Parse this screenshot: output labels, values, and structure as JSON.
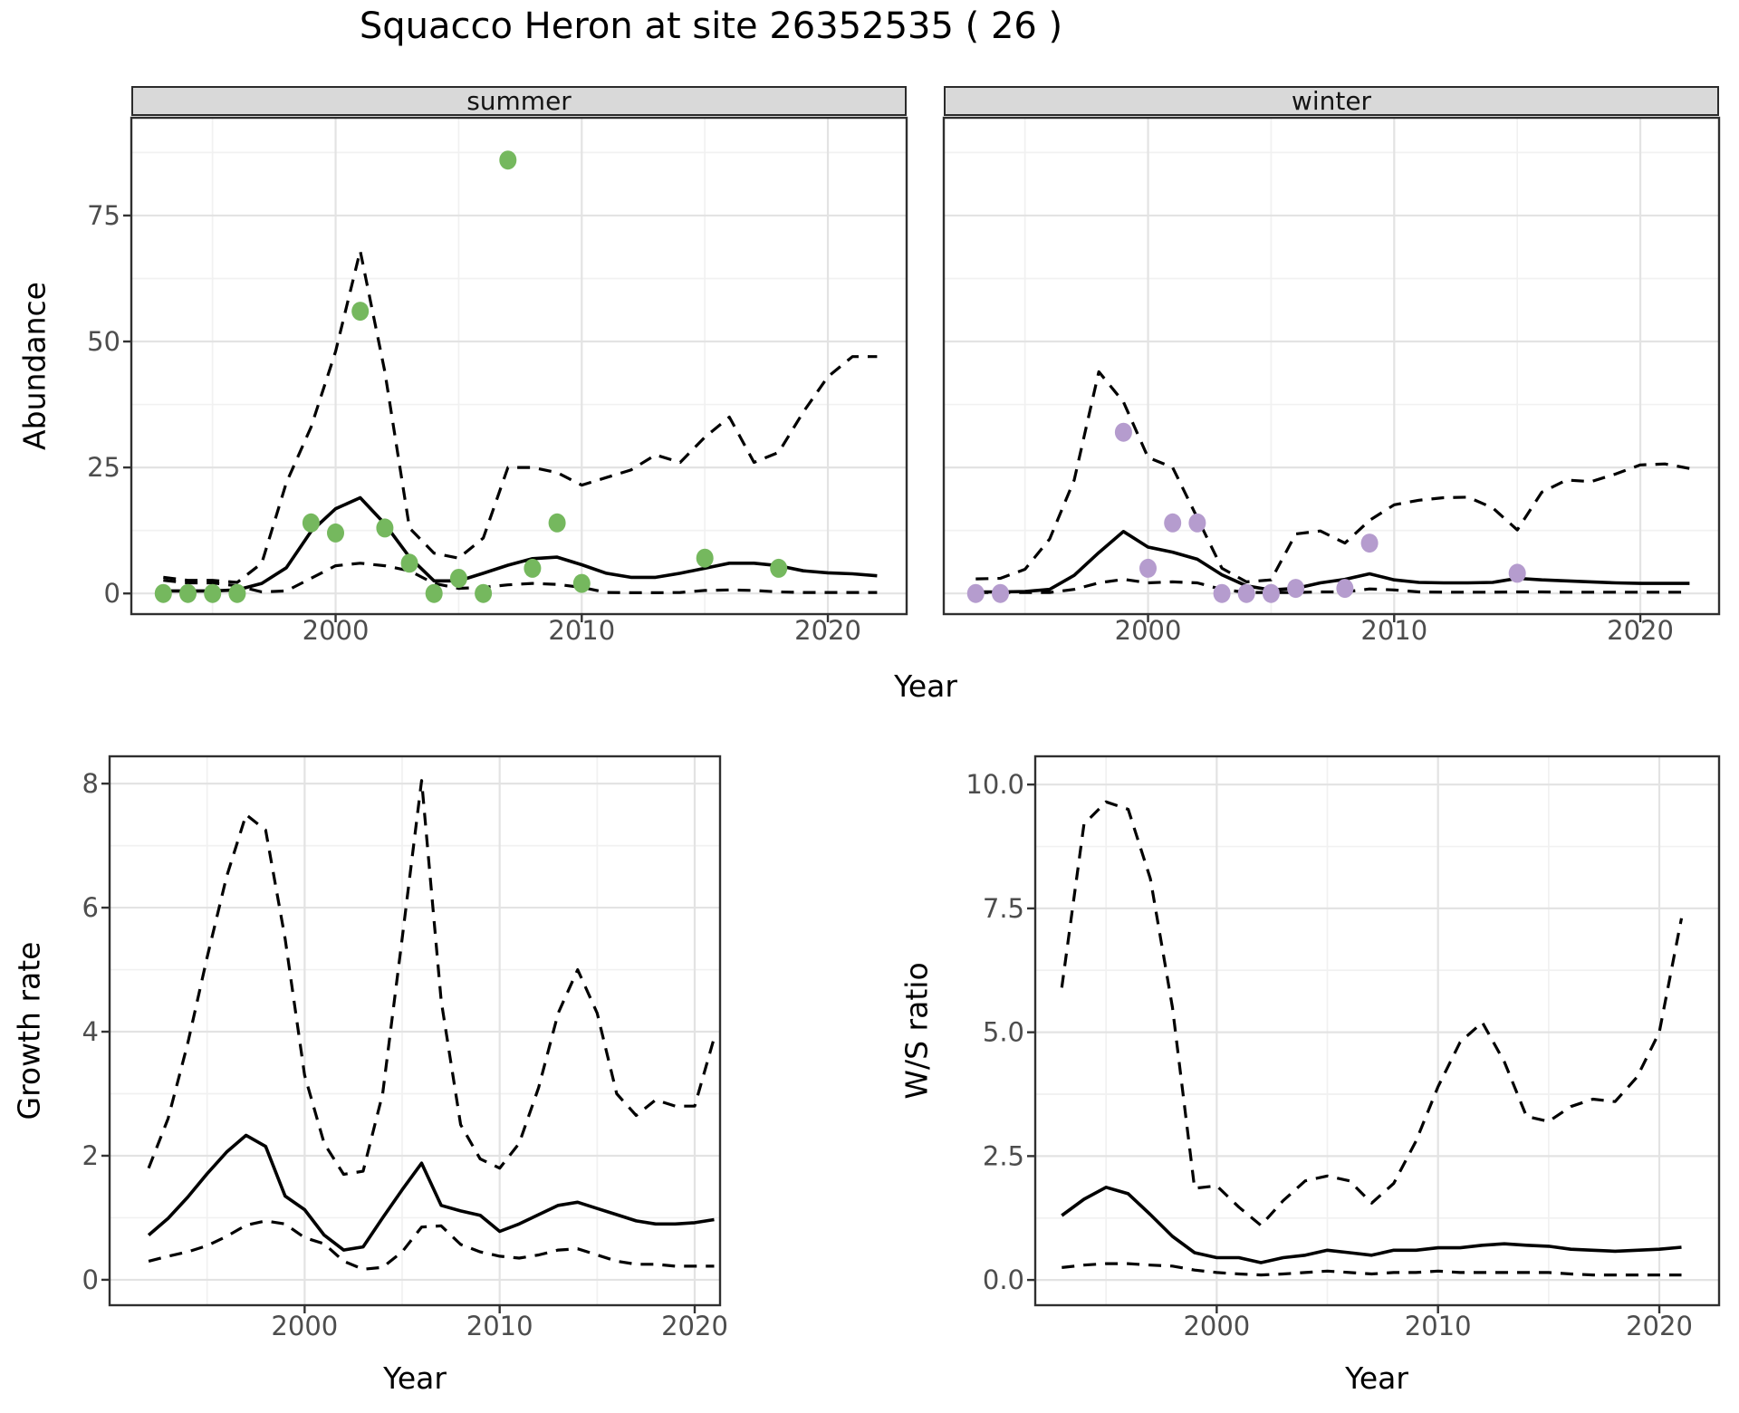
{
  "title": "Squacco Heron at site 26352535 ( 26 )",
  "strips": {
    "summer": "summer",
    "winter": "winter"
  },
  "axis_titles": {
    "abundance": "Abundance",
    "year_top": "Year",
    "growth_rate": "Growth rate",
    "year_bottom_left": "Year",
    "ws_ratio": "W/S ratio",
    "year_bottom_right": "Year"
  },
  "colors": {
    "summer_point": "#75b85e",
    "winter_point": "#b59cce",
    "line": "#000000",
    "strip_bg": "#d9d9d9",
    "panel_border": "#2f2f2f",
    "grid_major": "#e3e3e3",
    "grid_minor": "#f1f1f1",
    "tick_text": "#4d4d4d",
    "tick_mark": "#333333"
  },
  "chart_data": [
    {
      "id": "summer_abundance",
      "type": "line",
      "facet": "summer",
      "xlabel": "Year",
      "ylabel": "Abundance",
      "xlim": [
        1991.7,
        2023.2
      ],
      "ylim": [
        -4.1,
        94.4
      ],
      "xticks": [
        2000,
        2010,
        2020
      ],
      "xtick_labels": [
        "2000",
        "2010",
        "2020"
      ],
      "xticks_minor": [
        1995,
        2005,
        2015
      ],
      "yticks": [
        0,
        25,
        50,
        75
      ],
      "ytick_labels": [
        "0",
        "25",
        "50",
        "75"
      ],
      "yticks_minor": [
        12.5,
        37.5,
        62.5,
        87.5
      ],
      "years": [
        1993,
        1994,
        1995,
        1996,
        1997,
        1998,
        1999,
        2000,
        2001,
        2002,
        2003,
        2004,
        2005,
        2006,
        2007,
        2008,
        2009,
        2010,
        2011,
        2012,
        2013,
        2014,
        2015,
        2016,
        2017,
        2018,
        2019,
        2020,
        2021,
        2022
      ],
      "series": [
        {
          "name": "median",
          "style": "solid",
          "values": [
            0.5,
            0.5,
            0.5,
            0.7,
            2.0,
            5.1,
            12.3,
            16.8,
            19.0,
            13.8,
            7.2,
            2.5,
            2.5,
            4.0,
            5.6,
            6.9,
            7.2,
            5.7,
            4.0,
            3.2,
            3.2,
            4.0,
            5.0,
            6.0,
            6.0,
            5.5,
            4.5,
            4.1,
            3.9,
            3.5
          ]
        },
        {
          "name": "upper_ci",
          "style": "dashed",
          "values": [
            3.2,
            2.6,
            2.6,
            2.2,
            6.0,
            22.0,
            33.0,
            48.0,
            68.0,
            44.0,
            13.0,
            8.0,
            7.0,
            11.0,
            25.0,
            25.0,
            24.0,
            21.5,
            23.0,
            24.5,
            27.5,
            26.0,
            31.0,
            35.0,
            26.0,
            28.0,
            36.0,
            43.0,
            47.0,
            47.0
          ]
        },
        {
          "name": "lower_ci",
          "style": "dashed",
          "values": [
            2.6,
            2.1,
            2.1,
            1.5,
            0.3,
            0.5,
            3.0,
            5.5,
            6.0,
            5.5,
            4.5,
            2.0,
            1.0,
            1.2,
            1.7,
            2.0,
            1.8,
            1.2,
            0.2,
            0.15,
            0.15,
            0.2,
            0.6,
            0.7,
            0.6,
            0.3,
            0.2,
            0.2,
            0.2,
            0.2
          ]
        }
      ],
      "points": {
        "name": "observed_counts",
        "color_key": "summer_point",
        "data": [
          [
            1993,
            0
          ],
          [
            1994,
            0
          ],
          [
            1995,
            0
          ],
          [
            1996,
            0
          ],
          [
            1999,
            14
          ],
          [
            2000,
            12
          ],
          [
            2001,
            56
          ],
          [
            2002,
            13
          ],
          [
            2003,
            6
          ],
          [
            2004,
            0
          ],
          [
            2005,
            3
          ],
          [
            2006,
            0
          ],
          [
            2007,
            86
          ],
          [
            2008,
            5
          ],
          [
            2009,
            14
          ],
          [
            2010,
            2
          ],
          [
            2015,
            7
          ],
          [
            2018,
            5
          ]
        ]
      }
    },
    {
      "id": "winter_abundance",
      "type": "line",
      "facet": "winter",
      "xlabel": "Year",
      "ylabel": "Abundance",
      "xlim": [
        1991.7,
        2023.2
      ],
      "ylim": [
        -4.1,
        94.4
      ],
      "xticks": [
        2000,
        2010,
        2020
      ],
      "xtick_labels": [
        "2000",
        "2010",
        "2020"
      ],
      "xticks_minor": [
        1995,
        2005,
        2015
      ],
      "yticks": [
        0,
        25,
        50,
        75
      ],
      "ytick_labels": [
        "0",
        "25",
        "50",
        "75"
      ],
      "yticks_minor": [
        12.5,
        37.5,
        62.5,
        87.5
      ],
      "years": [
        1993,
        1994,
        1995,
        1996,
        1997,
        1998,
        1999,
        2000,
        2001,
        2002,
        2003,
        2004,
        2005,
        2006,
        2007,
        2008,
        2009,
        2010,
        2011,
        2012,
        2013,
        2014,
        2015,
        2016,
        2017,
        2018,
        2019,
        2020,
        2021,
        2022
      ],
      "series": [
        {
          "name": "median",
          "style": "solid",
          "values": [
            0.3,
            0.3,
            0.4,
            0.8,
            3.6,
            8.1,
            12.3,
            9.2,
            8.2,
            6.8,
            3.7,
            1.5,
            0.7,
            1.0,
            2.1,
            2.8,
            3.9,
            2.7,
            2.2,
            2.1,
            2.1,
            2.2,
            3.0,
            2.7,
            2.5,
            2.3,
            2.1,
            2.0,
            2.0,
            2.0
          ]
        },
        {
          "name": "upper_ci",
          "style": "dashed",
          "values": [
            2.9,
            3.0,
            4.8,
            10.8,
            22.5,
            44.0,
            38.0,
            27.0,
            25.0,
            15.0,
            5.0,
            2.3,
            2.7,
            11.8,
            12.4,
            10.0,
            14.5,
            17.6,
            18.5,
            19.0,
            19.1,
            17.0,
            12.6,
            20.1,
            22.5,
            22.2,
            23.7,
            25.5,
            25.7,
            24.8
          ]
        },
        {
          "name": "lower_ci",
          "style": "dashed",
          "values": [
            0.2,
            0.2,
            0.2,
            0.2,
            0.8,
            2.1,
            2.8,
            2.1,
            2.3,
            2.1,
            0.8,
            0.2,
            0.2,
            0.2,
            0.3,
            0.3,
            0.9,
            0.7,
            0.3,
            0.25,
            0.25,
            0.25,
            0.3,
            0.3,
            0.25,
            0.25,
            0.25,
            0.25,
            0.25,
            0.25
          ]
        }
      ],
      "points": {
        "name": "observed_counts",
        "color_key": "winter_point",
        "data": [
          [
            1993,
            0
          ],
          [
            1994,
            0
          ],
          [
            1999,
            32
          ],
          [
            2000,
            5
          ],
          [
            2001,
            14
          ],
          [
            2002,
            14
          ],
          [
            2003,
            0
          ],
          [
            2004,
            0
          ],
          [
            2005,
            0
          ],
          [
            2006,
            1
          ],
          [
            2008,
            1
          ],
          [
            2009,
            10
          ],
          [
            2015,
            4
          ]
        ]
      }
    },
    {
      "id": "growth_rate",
      "type": "line",
      "facet": null,
      "xlabel": "Year",
      "ylabel": "Growth rate",
      "xlim": [
        1990.0,
        2021.3
      ],
      "ylim": [
        -0.41,
        8.44
      ],
      "xticks": [
        2000,
        2010,
        2020
      ],
      "xtick_labels": [
        "2000",
        "2010",
        "2020"
      ],
      "xticks_minor": [
        1995,
        2005,
        2015
      ],
      "yticks": [
        0,
        2,
        4,
        6,
        8
      ],
      "ytick_labels": [
        "0",
        "2",
        "4",
        "6",
        "8"
      ],
      "yticks_minor": [
        1,
        3,
        5,
        7
      ],
      "years": [
        1992,
        1993,
        1994,
        1995,
        1996,
        1997,
        1998,
        1999,
        2000,
        2001,
        2002,
        2003,
        2004,
        2005,
        2006,
        2007,
        2008,
        2009,
        2010,
        2011,
        2012,
        2013,
        2014,
        2015,
        2016,
        2017,
        2018,
        2019,
        2020,
        2021
      ],
      "series": [
        {
          "name": "median",
          "style": "solid",
          "values": [
            0.72,
            0.99,
            1.33,
            1.71,
            2.06,
            2.33,
            2.15,
            1.35,
            1.13,
            0.72,
            0.48,
            0.53,
            1.0,
            1.45,
            1.88,
            1.2,
            1.11,
            1.04,
            0.78,
            0.9,
            1.05,
            1.2,
            1.25,
            1.15,
            1.05,
            0.95,
            0.9,
            0.9,
            0.92,
            0.97
          ]
        },
        {
          "name": "upper_ci",
          "style": "dashed",
          "values": [
            1.8,
            2.6,
            3.8,
            5.2,
            6.5,
            7.5,
            7.25,
            5.5,
            3.3,
            2.2,
            1.7,
            1.75,
            3.0,
            5.5,
            8.05,
            4.5,
            2.5,
            1.95,
            1.8,
            2.2,
            3.1,
            4.3,
            5.0,
            4.3,
            3.0,
            2.65,
            2.9,
            2.8,
            2.8,
            3.9
          ]
        },
        {
          "name": "lower_ci",
          "style": "dashed",
          "values": [
            0.3,
            0.38,
            0.45,
            0.55,
            0.7,
            0.88,
            0.95,
            0.9,
            0.68,
            0.58,
            0.3,
            0.17,
            0.2,
            0.45,
            0.85,
            0.87,
            0.57,
            0.45,
            0.38,
            0.35,
            0.4,
            0.48,
            0.5,
            0.4,
            0.3,
            0.25,
            0.25,
            0.22,
            0.22,
            0.22
          ]
        }
      ],
      "points": null
    },
    {
      "id": "ws_ratio",
      "type": "line",
      "facet": null,
      "xlabel": "Year",
      "ylabel": "W/S ratio",
      "xlim": [
        1991.8,
        2022.7
      ],
      "ylim": [
        -0.51,
        10.57
      ],
      "xticks": [
        2000,
        2010,
        2020
      ],
      "xtick_labels": [
        "2000",
        "2010",
        "2020"
      ],
      "xticks_minor": [
        1995,
        2005,
        2015
      ],
      "yticks": [
        0,
        2.5,
        5,
        7.5,
        10
      ],
      "ytick_labels": [
        "0.0",
        "2.5",
        "5.0",
        "7.5",
        "10.0"
      ],
      "yticks_minor": [
        1.25,
        3.75,
        6.25,
        8.75
      ],
      "years": [
        1993,
        1994,
        1995,
        1996,
        1997,
        1998,
        1999,
        2000,
        2001,
        2002,
        2003,
        2004,
        2005,
        2006,
        2007,
        2008,
        2009,
        2010,
        2011,
        2012,
        2013,
        2014,
        2015,
        2016,
        2017,
        2018,
        2019,
        2020,
        2021
      ],
      "series": [
        {
          "name": "median",
          "style": "solid",
          "values": [
            1.3,
            1.63,
            1.87,
            1.74,
            1.32,
            0.88,
            0.55,
            0.45,
            0.45,
            0.35,
            0.45,
            0.5,
            0.6,
            0.55,
            0.5,
            0.6,
            0.6,
            0.65,
            0.65,
            0.7,
            0.73,
            0.7,
            0.68,
            0.62,
            0.6,
            0.58,
            0.6,
            0.62,
            0.66
          ]
        },
        {
          "name": "upper_ci",
          "style": "dashed",
          "values": [
            5.9,
            9.2,
            9.65,
            9.5,
            8.1,
            5.5,
            1.85,
            1.9,
            1.47,
            1.1,
            1.6,
            2.0,
            2.1,
            2.0,
            1.55,
            1.95,
            2.8,
            3.9,
            4.8,
            5.2,
            4.4,
            3.3,
            3.2,
            3.5,
            3.65,
            3.6,
            4.1,
            5.0,
            7.3
          ]
        },
        {
          "name": "lower_ci",
          "style": "dashed",
          "values": [
            0.25,
            0.3,
            0.33,
            0.33,
            0.3,
            0.28,
            0.2,
            0.15,
            0.12,
            0.1,
            0.12,
            0.15,
            0.18,
            0.15,
            0.12,
            0.15,
            0.15,
            0.18,
            0.15,
            0.15,
            0.15,
            0.15,
            0.15,
            0.12,
            0.1,
            0.1,
            0.1,
            0.1,
            0.1
          ]
        }
      ],
      "points": null
    }
  ]
}
